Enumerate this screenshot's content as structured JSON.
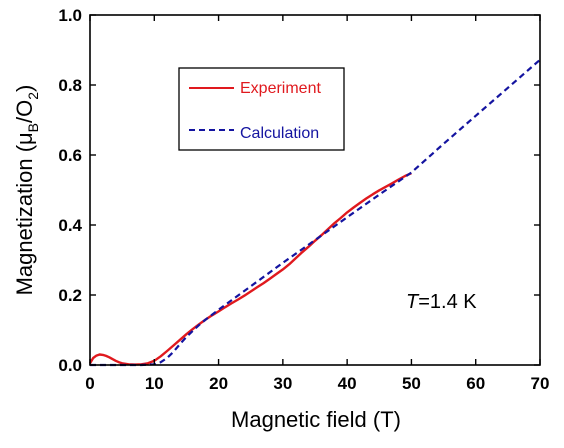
{
  "chart_data": {
    "type": "line",
    "xlabel": "Magnetic field (T)",
    "ylabel_main": "Magnetization (μ",
    "ylabel_sub1": "B",
    "ylabel_mid": "/O",
    "ylabel_sub2": "2",
    "ylabel_end": ")",
    "xlim": [
      0,
      70
    ],
    "ylim": [
      0,
      1.0
    ],
    "xticks": [
      0,
      10,
      20,
      30,
      40,
      50,
      60,
      70
    ],
    "xtick_labels": [
      "0",
      "10",
      "20",
      "30",
      "40",
      "50",
      "60",
      "70"
    ],
    "yticks": [
      0,
      0.2,
      0.4,
      0.6,
      0.8,
      1.0
    ],
    "ytick_labels": [
      "0.0",
      "0.2",
      "0.4",
      "0.6",
      "0.8",
      "1.0"
    ],
    "grid": false,
    "legend_placement": "upper-left",
    "annotation_italic": "T",
    "annotation_rest": "=1.4 K",
    "series": [
      {
        "name": "Experiment",
        "color": "#e0191e",
        "style": "solid",
        "x": [
          0,
          0.5,
          1,
          1.5,
          2,
          2.5,
          3,
          3.5,
          4,
          4.5,
          5,
          6,
          7,
          8,
          9,
          10,
          11,
          12,
          13,
          14,
          15,
          16,
          17,
          18,
          19,
          20,
          21,
          22,
          23,
          24,
          25,
          26,
          27,
          28,
          29,
          30,
          31,
          32,
          33,
          34,
          35,
          36,
          37,
          38,
          39,
          40,
          41,
          42,
          43,
          44,
          45,
          46,
          47,
          48,
          49,
          50
        ],
        "y": [
          0.005,
          0.02,
          0.027,
          0.03,
          0.029,
          0.026,
          0.022,
          0.017,
          0.012,
          0.008,
          0.005,
          0.002,
          0.001,
          0.002,
          0.005,
          0.012,
          0.025,
          0.04,
          0.056,
          0.072,
          0.088,
          0.103,
          0.117,
          0.13,
          0.142,
          0.153,
          0.165,
          0.176,
          0.187,
          0.198,
          0.21,
          0.222,
          0.234,
          0.247,
          0.26,
          0.273,
          0.288,
          0.305,
          0.322,
          0.338,
          0.355,
          0.371,
          0.388,
          0.405,
          0.42,
          0.436,
          0.45,
          0.463,
          0.476,
          0.488,
          0.499,
          0.509,
          0.519,
          0.53,
          0.54,
          0.548
        ]
      },
      {
        "name": "Calculation",
        "color": "#1414a0",
        "style": "dashed",
        "x": [
          0,
          5,
          8,
          10,
          11,
          12,
          13,
          14,
          15,
          16,
          17,
          18,
          20,
          25,
          30,
          35,
          40,
          45,
          50,
          55,
          60,
          65,
          70
        ],
        "y": [
          0,
          0,
          0,
          0.002,
          0.008,
          0.02,
          0.038,
          0.06,
          0.08,
          0.098,
          0.115,
          0.13,
          0.158,
          0.225,
          0.292,
          0.357,
          0.422,
          0.487,
          0.55,
          0.632,
          0.712,
          0.792,
          0.872
        ]
      }
    ]
  }
}
